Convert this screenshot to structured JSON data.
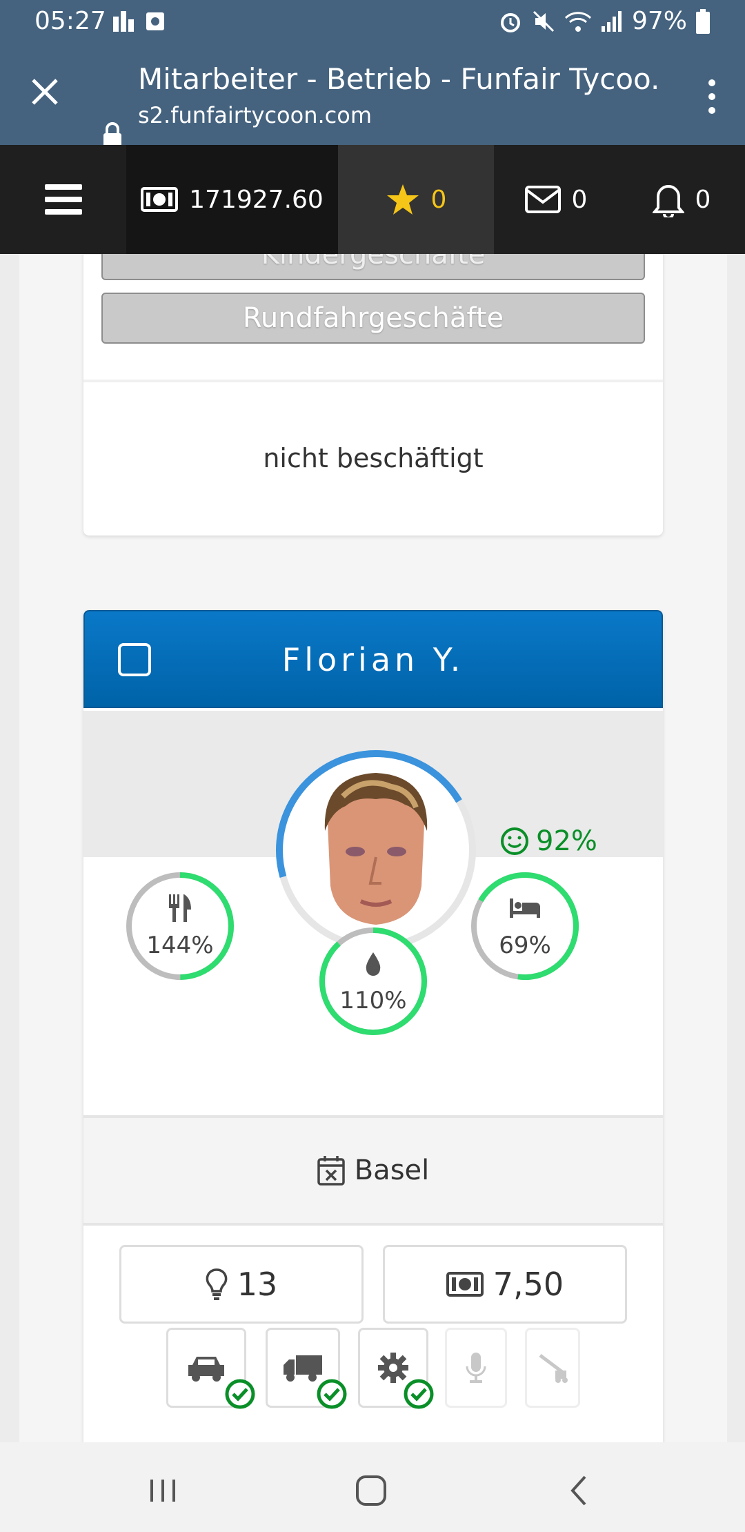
{
  "status_bar": {
    "time": "05:27",
    "battery": "97%"
  },
  "browser": {
    "title": "Mitarbeiter - Betrieb - Funfair Tycoo...",
    "url": "s2.funfairtycoon.com"
  },
  "toolbar": {
    "money": "171927.60",
    "stars": "0",
    "mail": "0",
    "notifications": "0"
  },
  "prev_card": {
    "categories": [
      "Kindergeschäfte",
      "Rundfahrgeschäfte"
    ],
    "status": "nicht beschäftigt"
  },
  "employee": {
    "name": "Florian Y.",
    "mood": "92%",
    "stats": {
      "food": "144%",
      "water": "110%",
      "sleep": "69%"
    },
    "location": "Basel",
    "skill_points": "13",
    "wage": "7,50"
  },
  "colors": {
    "header_blue": "#0a6fba",
    "mood_green": "#0a8f28",
    "ring_green": "#2edc6f",
    "ring_blue": "#3a93dc"
  }
}
